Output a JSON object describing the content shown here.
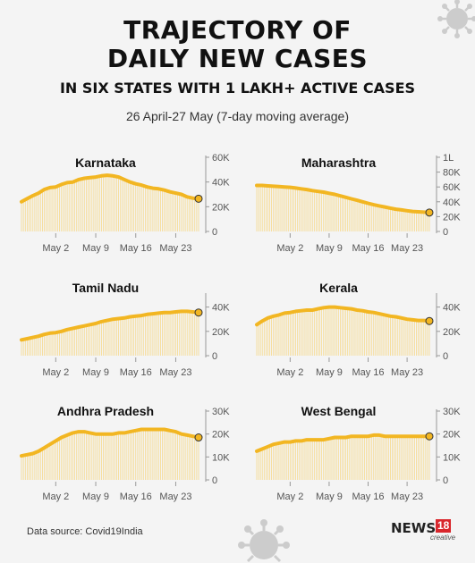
{
  "header": {
    "title_line1": "TRAJECTORY OF",
    "title_line2": "DAILY NEW CASES",
    "subtitle": "IN SIX STATES WITH 1 LAKH+ ACTIVE CASES",
    "dateline": "26 April-27 May (7-day moving average)"
  },
  "footer": {
    "source": "Data source: Covid19India",
    "logo_text": "NEWS",
    "logo_number": "18",
    "logo_sub": "creative"
  },
  "colors": {
    "line": "#f2b622",
    "fill_stripe": "#f6d98a",
    "axis": "#999999",
    "end_marker_stroke": "#333333"
  },
  "chart_data": [
    {
      "type": "area",
      "title": "Karnataka",
      "x_ticks": [
        "May 2",
        "May 9",
        "May 16",
        "May 23"
      ],
      "y_ticks": [
        "60K",
        "40K",
        "20K",
        "0"
      ],
      "ylim": [
        0,
        60000
      ],
      "y_tick_values": [
        60000,
        40000,
        20000,
        0
      ],
      "values": [
        24000,
        26500,
        29000,
        31000,
        34000,
        35500,
        36000,
        38000,
        39500,
        40000,
        42000,
        43000,
        43500,
        44000,
        45000,
        45500,
        45000,
        44000,
        42000,
        40000,
        38500,
        37500,
        36000,
        35000,
        34500,
        33500,
        32000,
        31000,
        30000,
        28000,
        27000,
        26500
      ]
    },
    {
      "type": "area",
      "title": "Maharashtra",
      "x_ticks": [
        "May 2",
        "May 9",
        "May 16",
        "May 23"
      ],
      "y_ticks": [
        "1L",
        "80K",
        "60K",
        "40K",
        "20K",
        "0"
      ],
      "ylim": [
        0,
        100000
      ],
      "y_tick_values": [
        100000,
        80000,
        60000,
        40000,
        20000,
        0
      ],
      "values": [
        62000,
        62000,
        61500,
        61000,
        60500,
        60000,
        59500,
        58500,
        57500,
        56500,
        55000,
        54000,
        53000,
        51500,
        50000,
        48000,
        46000,
        44000,
        42000,
        40000,
        38000,
        36000,
        34500,
        33000,
        31500,
        30000,
        29000,
        28000,
        27000,
        26500,
        26000,
        25500
      ]
    },
    {
      "type": "area",
      "title": "Tamil Nadu",
      "x_ticks": [
        "May 2",
        "May 9",
        "May 16",
        "May 23"
      ],
      "y_ticks": [
        "40K",
        "20K",
        "0"
      ],
      "ylim": [
        0,
        50000
      ],
      "y_tick_values": [
        40000,
        20000,
        0
      ],
      "values": [
        13000,
        14000,
        15000,
        16000,
        17500,
        18500,
        19000,
        20000,
        21500,
        22500,
        23500,
        24500,
        25500,
        26500,
        28000,
        29000,
        30000,
        30500,
        31000,
        32000,
        32500,
        33000,
        34000,
        34500,
        35000,
        35500,
        35500,
        36000,
        36500,
        36500,
        36000,
        35500
      ]
    },
    {
      "type": "area",
      "title": "Kerala",
      "x_ticks": [
        "May 2",
        "May 9",
        "May 16",
        "May 23"
      ],
      "y_ticks": [
        "40K",
        "20K",
        "0"
      ],
      "ylim": [
        0,
        50000
      ],
      "y_tick_values": [
        40000,
        20000,
        0
      ],
      "values": [
        25500,
        28500,
        31000,
        32500,
        33500,
        35000,
        35500,
        36500,
        37000,
        37500,
        37500,
        38500,
        39500,
        40000,
        40000,
        39500,
        39000,
        38500,
        37500,
        37000,
        36000,
        35500,
        34500,
        33500,
        32500,
        32000,
        31000,
        30000,
        29500,
        29000,
        29000,
        28500
      ]
    },
    {
      "type": "area",
      "title": "Andhra Pradesh",
      "x_ticks": [
        "May 2",
        "May 9",
        "May 16",
        "May 23"
      ],
      "y_ticks": [
        "30K",
        "20K",
        "10K",
        "0"
      ],
      "ylim": [
        0,
        30000
      ],
      "y_tick_values": [
        30000,
        20000,
        10000,
        0
      ],
      "values": [
        10500,
        11000,
        11500,
        12500,
        14000,
        15500,
        17000,
        18500,
        19500,
        20500,
        21000,
        21000,
        20500,
        20000,
        20000,
        20000,
        20000,
        20500,
        20500,
        21000,
        21500,
        22000,
        22000,
        22000,
        22000,
        22000,
        21500,
        21000,
        20000,
        19500,
        19000,
        18500
      ]
    },
    {
      "type": "area",
      "title": "West Bengal",
      "x_ticks": [
        "May 2",
        "May 9",
        "May 16",
        "May 23"
      ],
      "y_ticks": [
        "30K",
        "20K",
        "10K",
        "0"
      ],
      "ylim": [
        0,
        30000
      ],
      "y_tick_values": [
        30000,
        20000,
        10000,
        0
      ],
      "values": [
        12500,
        13500,
        14500,
        15500,
        16000,
        16500,
        16500,
        17000,
        17000,
        17500,
        17500,
        17500,
        17500,
        18000,
        18500,
        18500,
        18500,
        19000,
        19000,
        19000,
        19000,
        19500,
        19500,
        19000,
        19000,
        19000,
        19000,
        19000,
        19000,
        19000,
        19000,
        19000
      ]
    }
  ]
}
